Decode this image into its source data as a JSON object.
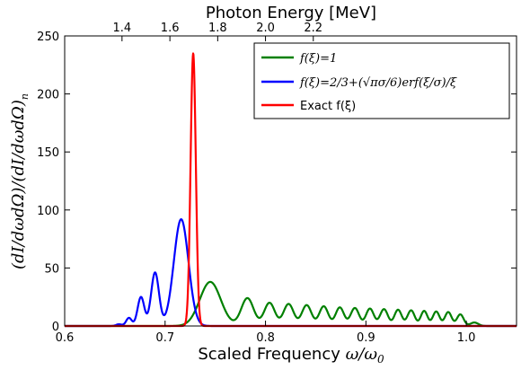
{
  "chart_data": {
    "type": "line",
    "xlabel": "Scaled Frequency",
    "xlabel_math": "ω/ω",
    "xlabel_math_sub": "0",
    "ylabel": "(dI/dωdΩ)/(dI/dωdΩ)",
    "ylabel_sub": "n",
    "top_xlabel": "Photon Energy [MeV]",
    "xlim": [
      0.6,
      1.05
    ],
    "ylim": [
      0,
      250
    ],
    "xticks": [
      "0.6",
      "0.7",
      "0.8",
      "0.9",
      "1.0"
    ],
    "xtick_values": [
      0.6,
      0.7,
      0.8,
      0.9,
      1.0
    ],
    "yticks": [
      "0",
      "50",
      "100",
      "150",
      "200",
      "250"
    ],
    "ytick_values": [
      0,
      50,
      100,
      150,
      200,
      250
    ],
    "top_xticks": [
      "1.4",
      "1.6",
      "1.8",
      "2.0",
      "2.2"
    ],
    "top_xtick_positions": [
      0.6571,
      0.7048,
      0.7524,
      0.8,
      0.8476
    ],
    "grid": false,
    "legend_position": "top-right",
    "series": [
      {
        "name": "f(ξ)=1",
        "color": "#008000",
        "peaks": [
          [
            0.745,
            38
          ],
          [
            0.782,
            24
          ],
          [
            0.804,
            20
          ],
          [
            0.823,
            19
          ],
          [
            0.841,
            18
          ],
          [
            0.858,
            17
          ],
          [
            0.874,
            16
          ],
          [
            0.889,
            15.5
          ],
          [
            0.904,
            15
          ],
          [
            0.918,
            14.5
          ],
          [
            0.932,
            14
          ],
          [
            0.945,
            13.5
          ],
          [
            0.958,
            13
          ],
          [
            0.97,
            12.5
          ],
          [
            0.982,
            12
          ],
          [
            0.994,
            10
          ],
          [
            1.008,
            3
          ]
        ]
      },
      {
        "name": "f(ξ)=2/3+(√πσ/6)erf(ξ/σ)/ξ",
        "color": "#0000ff",
        "peaks": [
          [
            0.654,
            1.5
          ],
          [
            0.664,
            7
          ],
          [
            0.676,
            25
          ],
          [
            0.69,
            46
          ],
          [
            0.716,
            92
          ]
        ]
      },
      {
        "name": "Exact f(ξ)",
        "color": "#ff0000",
        "peaks": [
          [
            0.728,
            235
          ]
        ]
      }
    ]
  }
}
